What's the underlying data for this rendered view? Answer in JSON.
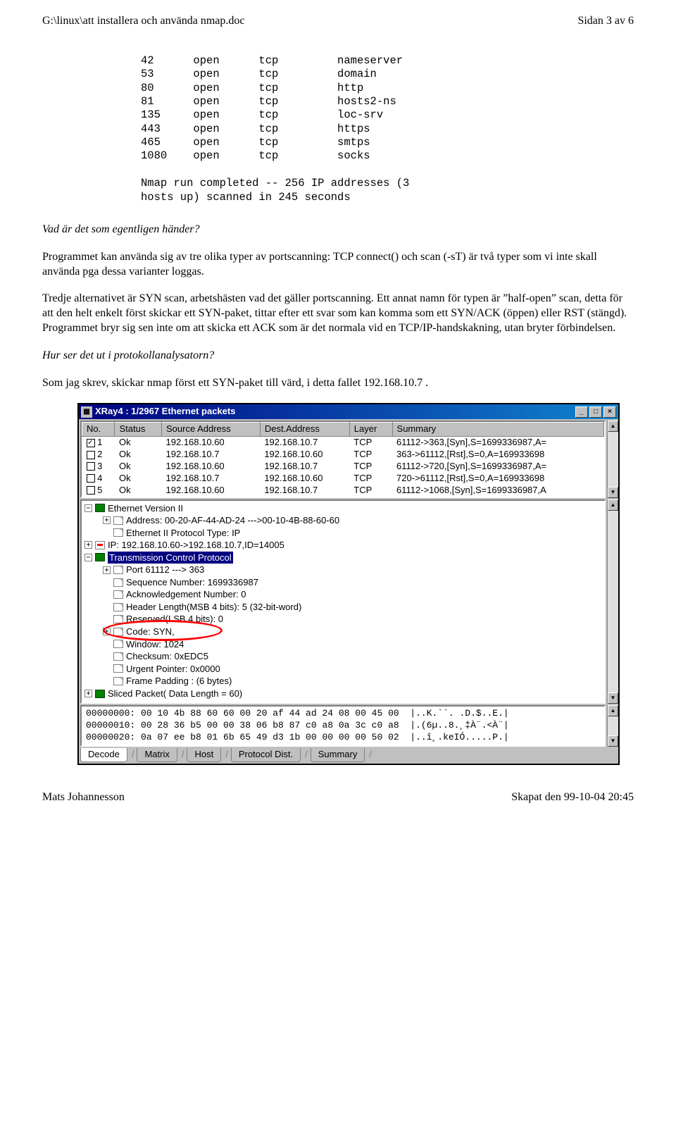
{
  "header": {
    "path": "G:\\linux\\att installera och använda nmap.doc",
    "page": "Sidan 3 av 6"
  },
  "code": {
    "rows": [
      [
        "42",
        "open",
        "tcp",
        "nameserver"
      ],
      [
        "53",
        "open",
        "tcp",
        "domain"
      ],
      [
        "80",
        "open",
        "tcp",
        "http"
      ],
      [
        "81",
        "open",
        "tcp",
        "hosts2-ns"
      ],
      [
        "135",
        "open",
        "tcp",
        "loc-srv"
      ],
      [
        "443",
        "open",
        "tcp",
        "https"
      ],
      [
        "465",
        "open",
        "tcp",
        "smtps"
      ],
      [
        "1080",
        "open",
        "tcp",
        "socks"
      ]
    ],
    "footer1": "Nmap run completed -- 256 IP addresses (3",
    "footer2": "hosts up) scanned in 245 seconds"
  },
  "paragraphs": {
    "q1": "Vad är det som egentligen händer?",
    "p1": "Programmet kan använda sig av tre olika typer av portscanning: TCP connect() och scan (-sT) är två typer som vi inte skall använda pga dessa varianter loggas.",
    "p2": "Tredje alternativet är SYN scan, arbetshästen vad det gäller portscanning. Ett annat namn för typen är ”half-open” scan, detta för att den helt enkelt först skickar ett SYN-paket, tittar efter ett svar som kan komma som ett SYN/ACK (öppen) eller RST (stängd). Programmet bryr sig sen inte om att skicka ett ACK som är det normala vid en TCP/IP-handskakning, utan bryter förbindelsen.",
    "q2": "Hur ser det ut i protokollanalysatorn?",
    "p3": "Som jag skrev, skickar nmap först ett SYN-paket till värd, i detta fallet 192.168.10.7 ."
  },
  "window": {
    "title": "XRay4 : 1/2967 Ethernet packets",
    "columns": [
      "No.",
      "Status",
      "Source Address",
      "Dest.Address",
      "Layer",
      "Summary"
    ],
    "rows": [
      {
        "no": "1",
        "checked": true,
        "status": "Ok",
        "src": "192.168.10.60",
        "dst": "192.168.10.7",
        "layer": "TCP",
        "summary": "61112->363,[Syn],S=1699336987,A="
      },
      {
        "no": "2",
        "checked": false,
        "status": "Ok",
        "src": "192.168.10.7",
        "dst": "192.168.10.60",
        "layer": "TCP",
        "summary": "363->61112,[Rst],S=0,A=169933698"
      },
      {
        "no": "3",
        "checked": false,
        "status": "Ok",
        "src": "192.168.10.60",
        "dst": "192.168.10.7",
        "layer": "TCP",
        "summary": "61112->720,[Syn],S=1699336987,A="
      },
      {
        "no": "4",
        "checked": false,
        "status": "Ok",
        "src": "192.168.10.7",
        "dst": "192.168.10.60",
        "layer": "TCP",
        "summary": "720->61112,[Rst],S=0,A=169933698"
      },
      {
        "no": "5",
        "checked": false,
        "status": "Ok",
        "src": "192.168.10.60",
        "dst": "192.168.10.7",
        "layer": "TCP",
        "summary": "61112->1068,[Syn],S=1699336987,A"
      }
    ],
    "tree": {
      "eth": "Ethernet Version II",
      "addr": "Address: 00-20-AF-44-AD-24 --->00-10-4B-88-60-60",
      "ptype": "Ethernet II Protocol Type: IP",
      "ip": "IP: 192.168.10.60->192.168.10.7,ID=14005",
      "tcp": "Transmission Control Protocol",
      "port": "Port 61112 ---> 363",
      "seq": "Sequence Number: 1699336987",
      "ack": "Acknowledgement Number: 0",
      "hlen": "Header Length(MSB 4 bits): 5 (32-bit-word)",
      "resv": "Reserved(LSB 4 bits): 0",
      "code": "Code: SYN,",
      "wind": "Window: 1024",
      "chk": "Checksum: 0xEDC5",
      "urg": "Urgent Pointer: 0x0000",
      "pad": "Frame Padding : (6 bytes)",
      "sliced": "Sliced Packet( Data Length = 60)"
    },
    "hex": {
      "l1": "00000000: 00 10 4b 88 60 60 00 20 af 44 ad 24 08 00 45 00  |..K.``. .D.$..E.|",
      "l2": "00000010: 00 28 36 b5 00 00 38 06 b8 87 c0 a8 0a 3c c0 a8  |.(6µ..8.¸‡À¨.<À¨|",
      "l3": "00000020: 0a 07 ee b8 01 6b 65 49 d3 1b 00 00 00 00 50 02  |..î¸.keIÓ.....P.|"
    },
    "tabs": [
      "Decode",
      "Matrix",
      "Host",
      "Protocol Dist.",
      "Summary"
    ]
  },
  "footer": {
    "author": "Mats Johannesson",
    "created": "Skapat den 99-10-04 20:45"
  },
  "colors": {
    "titlebar_start": "#000080",
    "titlebar_end": "#1084d0",
    "selection_bg": "#000080",
    "selection_fg": "#ffffff",
    "oval": "#ff0000",
    "win_bg": "#c0c0c0"
  }
}
